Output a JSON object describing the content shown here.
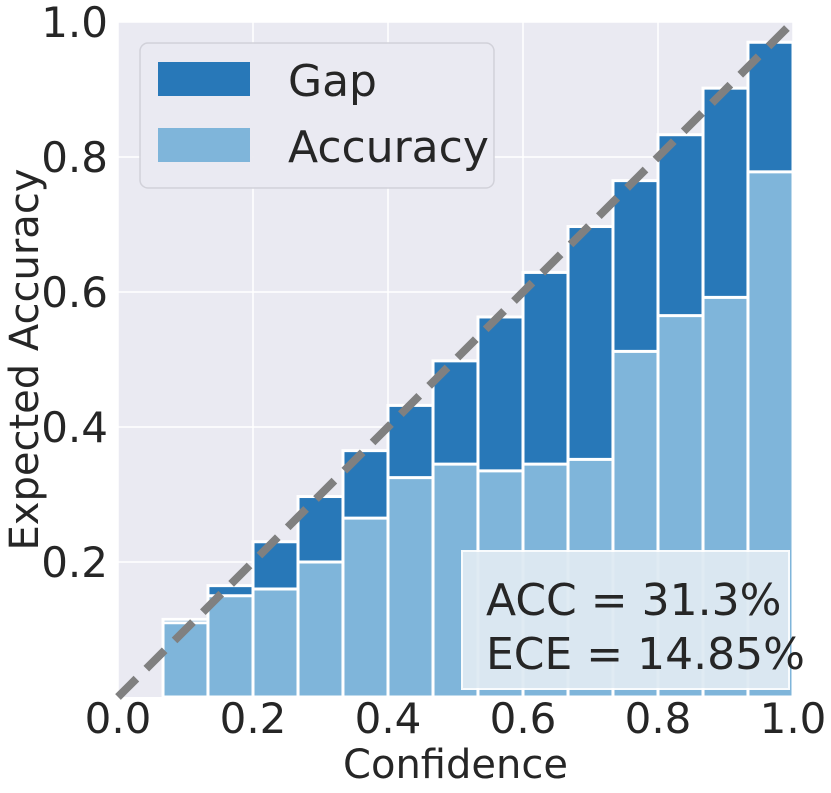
{
  "chart_data": {
    "type": "bar",
    "title": "",
    "xlabel": "Confidence",
    "ylabel": "Expected Accuracy",
    "xlim": [
      0.0,
      1.0
    ],
    "ylim": [
      0.0,
      1.0
    ],
    "xticks": [
      "0.0",
      "0.2",
      "0.4",
      "0.6",
      "0.8",
      "1.0"
    ],
    "yticks": [
      "0.2",
      "0.4",
      "0.6",
      "0.8",
      "1.0"
    ],
    "grid": true,
    "legend_position": "top-left",
    "bin_width": 0.0667,
    "bin_starts": [
      0.0667,
      0.1333,
      0.2,
      0.2667,
      0.3333,
      0.4,
      0.4667,
      0.5333,
      0.6,
      0.6667,
      0.7333,
      0.8,
      0.8667,
      0.9333
    ],
    "series": [
      {
        "name": "Accuracy",
        "color": "#7fb5da",
        "values": [
          0.11,
          0.15,
          0.16,
          0.2,
          0.265,
          0.325,
          0.345,
          0.335,
          0.345,
          0.352,
          0.512,
          0.565,
          0.592,
          0.778
        ]
      },
      {
        "name": "Gap",
        "color": "#2878b8",
        "values": [
          0.115,
          0.165,
          0.23,
          0.297,
          0.365,
          0.432,
          0.498,
          0.563,
          0.629,
          0.697,
          0.765,
          0.833,
          0.902,
          0.97
        ]
      }
    ],
    "reference_line": {
      "style": "dashed",
      "color": "#808080",
      "from": [
        0.0,
        0.0
      ],
      "to": [
        1.0,
        1.0
      ]
    },
    "annotations": [
      "ACC = 31.3%",
      "ECE = 14.85%"
    ]
  }
}
